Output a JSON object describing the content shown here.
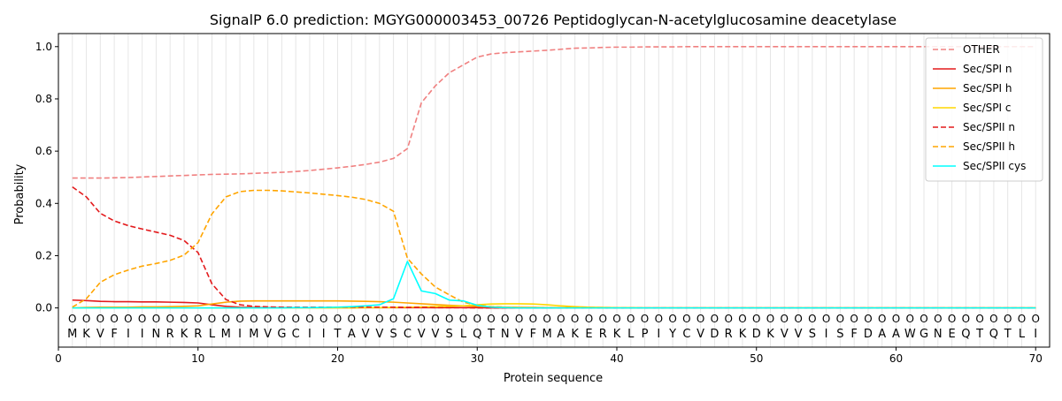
{
  "chart_data": {
    "type": "line",
    "title": "SignalP 6.0 prediction: MGYG000003453_00726 Peptidoglycan-N-acetylglucosamine deacetylase",
    "xlabel": "Protein sequence",
    "ylabel": "Probability",
    "xlim": [
      0,
      71
    ],
    "ylim": [
      -0.15,
      1.05
    ],
    "x_ticks": [
      0,
      10,
      20,
      30,
      40,
      50,
      60,
      70
    ],
    "y_ticks": [
      0.0,
      0.2,
      0.4,
      0.6,
      0.8,
      1.0
    ],
    "x_tick_labels": [
      "0",
      "10",
      "20",
      "30",
      "40",
      "50",
      "60",
      "70"
    ],
    "y_tick_labels": [
      "0.0",
      "0.2",
      "0.4",
      "0.6",
      "0.8",
      "1.0"
    ],
    "grid": "vertical lines at each residue position",
    "legend_position": "top-right",
    "sequence": [
      "M",
      "K",
      "V",
      "F",
      "I",
      "I",
      "N",
      "R",
      "K",
      "R",
      "L",
      "M",
      "I",
      "M",
      "V",
      "G",
      "C",
      "I",
      "I",
      "T",
      "A",
      "V",
      "V",
      "S",
      "C",
      "V",
      "V",
      "S",
      "L",
      "Q",
      "T",
      "N",
      "V",
      "F",
      "M",
      "A",
      "K",
      "E",
      "R",
      "K",
      "L",
      "P",
      "I",
      "Y",
      "C",
      "V",
      "D",
      "R",
      "K",
      "D",
      "K",
      "V",
      "V",
      "S",
      "I",
      "S",
      "F",
      "D",
      "A",
      "A",
      "W",
      "G",
      "N",
      "E",
      "Q",
      "T",
      "Q",
      "T",
      "L",
      "I"
    ],
    "sequence_marker": "O",
    "x": [
      1,
      2,
      3,
      4,
      5,
      6,
      7,
      8,
      9,
      10,
      11,
      12,
      13,
      14,
      15,
      16,
      17,
      18,
      19,
      20,
      21,
      22,
      23,
      24,
      25,
      26,
      27,
      28,
      29,
      30,
      31,
      32,
      33,
      34,
      35,
      36,
      37,
      38,
      39,
      40,
      41,
      42,
      43,
      44,
      45,
      46,
      47,
      48,
      49,
      50,
      51,
      52,
      53,
      54,
      55,
      56,
      57,
      58,
      59,
      60,
      61,
      62,
      63,
      64,
      65,
      66,
      67,
      68,
      69,
      70
    ],
    "series": [
      {
        "name": "OTHER",
        "color": "#f08080",
        "dash": "dashed",
        "values": [
          0.497,
          0.497,
          0.497,
          0.498,
          0.499,
          0.501,
          0.503,
          0.505,
          0.507,
          0.509,
          0.511,
          0.512,
          0.513,
          0.515,
          0.517,
          0.519,
          0.522,
          0.526,
          0.531,
          0.536,
          0.542,
          0.549,
          0.558,
          0.572,
          0.61,
          0.785,
          0.85,
          0.9,
          0.93,
          0.96,
          0.972,
          0.977,
          0.98,
          0.983,
          0.986,
          0.99,
          0.994,
          0.995,
          0.997,
          0.998,
          0.998,
          0.999,
          0.999,
          0.999,
          1.0,
          1.0,
          1.0,
          1.0,
          1.0,
          1.0,
          1.0,
          1.0,
          1.0,
          1.0,
          1.0,
          1.0,
          1.0,
          1.0,
          1.0,
          1.0,
          1.0,
          1.0,
          1.0,
          1.0,
          1.0,
          1.0,
          1.0,
          1.0,
          1.0,
          1.0
        ]
      },
      {
        "name": "Sec/SPI n",
        "color": "#e31a1c",
        "dash": "solid",
        "values": [
          0.03,
          0.028,
          0.025,
          0.024,
          0.024,
          0.023,
          0.023,
          0.022,
          0.021,
          0.019,
          0.012,
          0.006,
          0.003,
          0.002,
          0.001,
          0.001,
          0.001,
          0.001,
          0.001,
          0.001,
          0.001,
          0.001,
          0.001,
          0.001,
          0.001,
          0.001,
          0.001,
          0.001,
          0.001,
          0.001,
          0.0,
          0.0,
          0.0,
          0.0,
          0.0,
          0.0,
          0.0,
          0.0,
          0.0,
          0.0,
          0.0,
          0.0,
          0.0,
          0.0,
          0.0,
          0.0,
          0.0,
          0.0,
          0.0,
          0.0,
          0.0,
          0.0,
          0.0,
          0.0,
          0.0,
          0.0,
          0.0,
          0.0,
          0.0,
          0.0,
          0.0,
          0.0,
          0.0,
          0.0,
          0.0,
          0.0,
          0.0,
          0.0,
          0.0,
          0.0
        ]
      },
      {
        "name": "Sec/SPI h",
        "color": "#ffa500",
        "dash": "solid",
        "values": [
          0.0,
          0.002,
          0.003,
          0.003,
          0.003,
          0.004,
          0.004,
          0.005,
          0.006,
          0.008,
          0.015,
          0.022,
          0.026,
          0.027,
          0.027,
          0.027,
          0.027,
          0.027,
          0.027,
          0.027,
          0.026,
          0.025,
          0.024,
          0.022,
          0.019,
          0.016,
          0.013,
          0.01,
          0.008,
          0.006,
          0.004,
          0.003,
          0.002,
          0.002,
          0.001,
          0.001,
          0.001,
          0.0,
          0.0,
          0.0,
          0.0,
          0.0,
          0.0,
          0.0,
          0.0,
          0.0,
          0.0,
          0.0,
          0.0,
          0.0,
          0.0,
          0.0,
          0.0,
          0.0,
          0.0,
          0.0,
          0.0,
          0.0,
          0.0,
          0.0,
          0.0,
          0.0,
          0.0,
          0.0,
          0.0,
          0.0,
          0.0,
          0.0,
          0.0,
          0.0
        ]
      },
      {
        "name": "Sec/SPI c",
        "color": "#ffd700",
        "dash": "solid",
        "values": [
          0.0,
          0.0,
          0.0,
          0.0,
          0.0,
          0.0,
          0.0,
          0.0,
          0.0,
          0.0,
          0.0,
          0.0,
          0.0,
          0.0,
          0.0,
          0.0,
          0.0,
          0.0,
          0.0,
          0.0,
          0.0,
          0.001,
          0.001,
          0.002,
          0.003,
          0.004,
          0.005,
          0.006,
          0.008,
          0.012,
          0.015,
          0.016,
          0.016,
          0.015,
          0.012,
          0.008,
          0.005,
          0.003,
          0.002,
          0.001,
          0.001,
          0.0,
          0.0,
          0.0,
          0.0,
          0.0,
          0.0,
          0.0,
          0.0,
          0.0,
          0.0,
          0.0,
          0.0,
          0.0,
          0.0,
          0.0,
          0.0,
          0.0,
          0.0,
          0.0,
          0.0,
          0.0,
          0.0,
          0.0,
          0.0,
          0.0,
          0.0,
          0.0,
          0.0,
          0.0
        ]
      },
      {
        "name": "Sec/SPII n",
        "color": "#e31a1c",
        "dash": "dashed",
        "values": [
          0.463,
          0.425,
          0.362,
          0.333,
          0.315,
          0.302,
          0.29,
          0.278,
          0.258,
          0.212,
          0.092,
          0.032,
          0.012,
          0.006,
          0.004,
          0.003,
          0.003,
          0.003,
          0.003,
          0.003,
          0.003,
          0.003,
          0.003,
          0.003,
          0.002,
          0.002,
          0.001,
          0.001,
          0.001,
          0.0,
          0.0,
          0.0,
          0.0,
          0.0,
          0.0,
          0.0,
          0.0,
          0.0,
          0.0,
          0.0,
          0.0,
          0.0,
          0.0,
          0.0,
          0.0,
          0.0,
          0.0,
          0.0,
          0.0,
          0.0,
          0.0,
          0.0,
          0.0,
          0.0,
          0.0,
          0.0,
          0.0,
          0.0,
          0.0,
          0.0,
          0.0,
          0.0,
          0.0,
          0.0,
          0.0,
          0.0,
          0.0,
          0.0,
          0.0,
          0.0
        ]
      },
      {
        "name": "Sec/SPII h",
        "color": "#ffa500",
        "dash": "dashed",
        "values": [
          0.003,
          0.035,
          0.098,
          0.127,
          0.145,
          0.16,
          0.17,
          0.182,
          0.202,
          0.25,
          0.36,
          0.425,
          0.445,
          0.45,
          0.45,
          0.448,
          0.444,
          0.44,
          0.435,
          0.43,
          0.424,
          0.415,
          0.4,
          0.37,
          0.19,
          0.13,
          0.08,
          0.05,
          0.022,
          0.01,
          0.005,
          0.003,
          0.002,
          0.001,
          0.001,
          0.0,
          0.0,
          0.0,
          0.0,
          0.0,
          0.0,
          0.0,
          0.0,
          0.0,
          0.0,
          0.0,
          0.0,
          0.0,
          0.0,
          0.0,
          0.0,
          0.0,
          0.0,
          0.0,
          0.0,
          0.0,
          0.0,
          0.0,
          0.0,
          0.0,
          0.0,
          0.0,
          0.0,
          0.0,
          0.0,
          0.0,
          0.0,
          0.0,
          0.0,
          0.0
        ]
      },
      {
        "name": "Sec/SPII cys",
        "color": "#00ffff",
        "dash": "solid",
        "values": [
          0.0,
          0.0,
          0.0,
          0.0,
          0.0,
          0.0,
          0.0,
          0.0,
          0.0,
          0.0,
          0.0,
          0.0,
          0.0,
          0.0,
          0.0,
          0.0,
          0.001,
          0.001,
          0.002,
          0.003,
          0.005,
          0.008,
          0.012,
          0.035,
          0.178,
          0.065,
          0.055,
          0.03,
          0.027,
          0.01,
          0.003,
          0.001,
          0.0,
          0.0,
          0.0,
          0.0,
          0.0,
          0.0,
          0.0,
          0.0,
          0.0,
          0.0,
          0.0,
          0.0,
          0.0,
          0.0,
          0.0,
          0.0,
          0.0,
          0.0,
          0.0,
          0.0,
          0.0,
          0.0,
          0.0,
          0.0,
          0.0,
          0.0,
          0.0,
          0.0,
          0.0,
          0.0,
          0.0,
          0.0,
          0.0,
          0.0,
          0.0,
          0.0,
          0.0,
          0.0
        ]
      }
    ]
  }
}
